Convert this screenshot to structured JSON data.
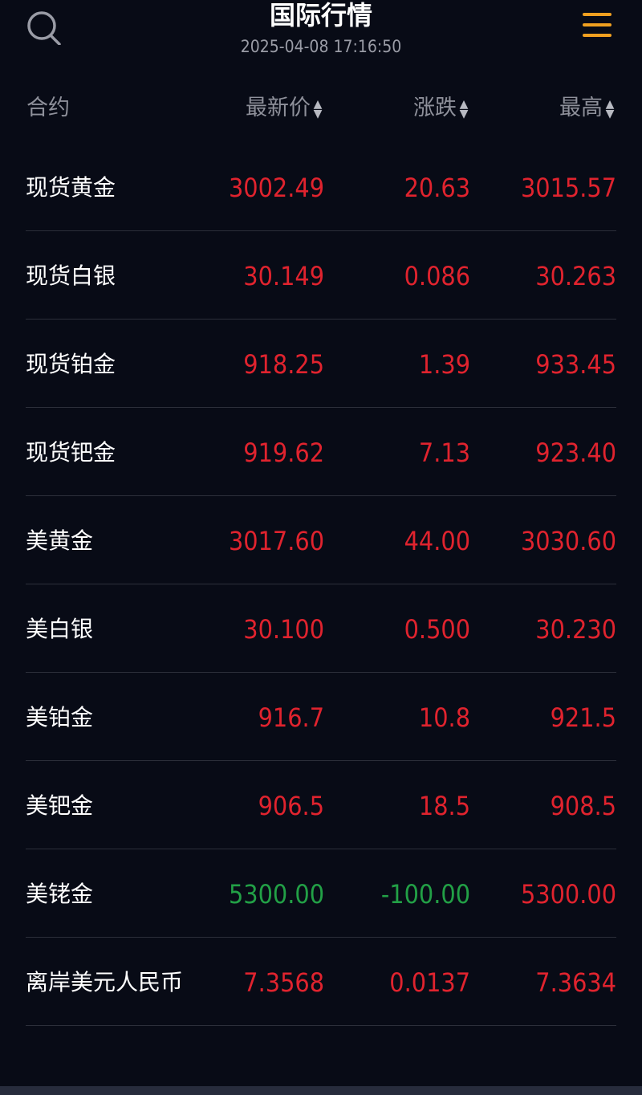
{
  "header": {
    "title": "国际行情",
    "timestamp": "2025-04-08 17:16:50",
    "search_icon": "search-icon",
    "menu_icon": "menu-icon"
  },
  "colors": {
    "up": "#e0232e",
    "down": "#22a046",
    "accent": "#f0a020"
  },
  "columns": {
    "name": "合约",
    "last": "最新价",
    "change": "涨跌",
    "high": "最高",
    "sort_glyph": "▲▼"
  },
  "rows": [
    {
      "name": "现货黄金",
      "last": "3002.49",
      "change": "20.63",
      "high": "3015.57",
      "dir": "up"
    },
    {
      "name": "现货白银",
      "last": "30.149",
      "change": "0.086",
      "high": "30.263",
      "dir": "up"
    },
    {
      "name": "现货铂金",
      "last": "918.25",
      "change": "1.39",
      "high": "933.45",
      "dir": "up"
    },
    {
      "name": "现货钯金",
      "last": "919.62",
      "change": "7.13",
      "high": "923.40",
      "dir": "up"
    },
    {
      "name": "美黄金",
      "last": "3017.60",
      "change": "44.00",
      "high": "3030.60",
      "dir": "up"
    },
    {
      "name": "美白银",
      "last": "30.100",
      "change": "0.500",
      "high": "30.230",
      "dir": "up"
    },
    {
      "name": "美铂金",
      "last": "916.7",
      "change": "10.8",
      "high": "921.5",
      "dir": "up"
    },
    {
      "name": "美钯金",
      "last": "906.5",
      "change": "18.5",
      "high": "908.5",
      "dir": "up"
    },
    {
      "name": "美铑金",
      "last": "5300.00",
      "change": "-100.00",
      "high": "5300.00",
      "dir": "down"
    },
    {
      "name": "离岸美元人民币",
      "last": "7.3568",
      "change": "0.0137",
      "high": "7.3634",
      "dir": "up"
    }
  ]
}
